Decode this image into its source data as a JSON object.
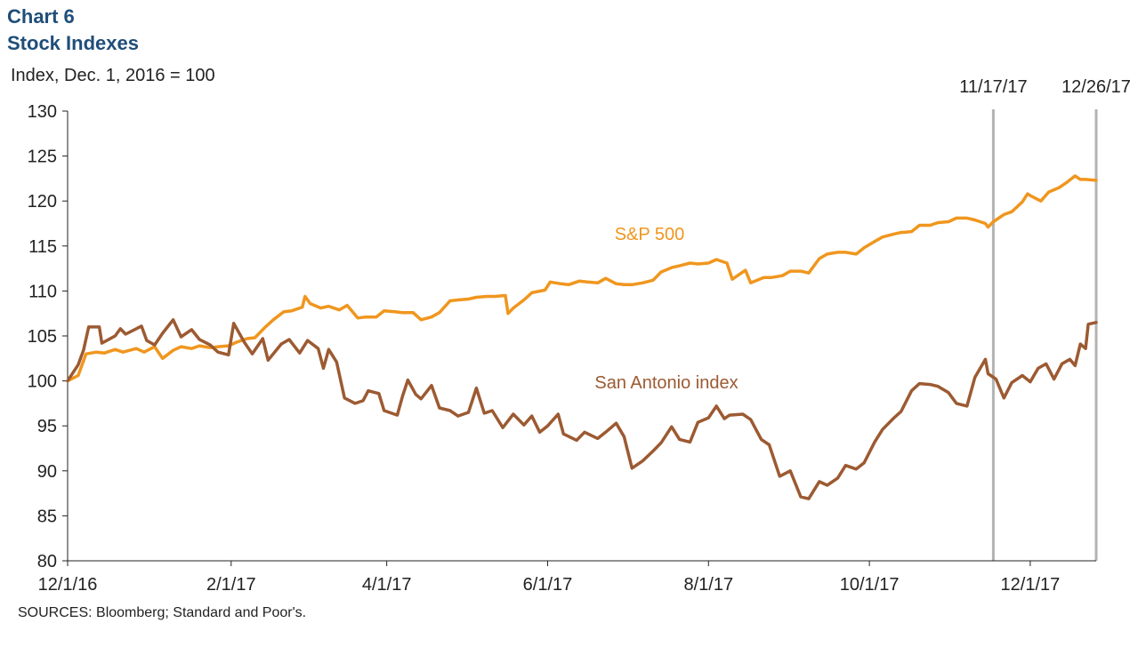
{
  "header": {
    "title": "Chart 6",
    "subtitle": "Stock Indexes",
    "ylabel": "Index, Dec. 1, 2016 = 100",
    "source": "SOURCES: Bloomberg; Standard and Poor's."
  },
  "chart_data": {
    "type": "line",
    "title": "Stock Indexes",
    "ylabel": "Index, Dec. 1, 2016 = 100",
    "xlabel": "",
    "ylim": [
      80,
      130
    ],
    "yticks": [
      80,
      85,
      90,
      95,
      100,
      105,
      110,
      115,
      120,
      125,
      130
    ],
    "xlim": [
      "2016-12-01",
      "2017-12-26"
    ],
    "x_tick_labels": [
      "12/1/16",
      "2/1/17",
      "4/1/17",
      "6/1/17",
      "8/1/17",
      "10/1/17",
      "12/1/17"
    ],
    "x_tick_dates": [
      "2016-12-01",
      "2017-02-01",
      "2017-04-01",
      "2017-06-01",
      "2017-08-01",
      "2017-10-01",
      "2017-12-01"
    ],
    "grid": false,
    "reference_lines": [
      {
        "label": "11/17/17",
        "date": "2017-11-17"
      },
      {
        "label": "12/26/17",
        "date": "2017-12-26"
      }
    ],
    "series": [
      {
        "name": "S&P 500",
        "color": "#f0961e",
        "points": [
          [
            "2016-12-01",
            100.0
          ],
          [
            "2016-12-05",
            100.6
          ],
          [
            "2016-12-08",
            103.0
          ],
          [
            "2016-12-12",
            103.2
          ],
          [
            "2016-12-15",
            103.1
          ],
          [
            "2016-12-19",
            103.5
          ],
          [
            "2016-12-22",
            103.2
          ],
          [
            "2016-12-27",
            103.6
          ],
          [
            "2016-12-30",
            103.2
          ],
          [
            "2017-01-03",
            103.8
          ],
          [
            "2017-01-06",
            102.5
          ],
          [
            "2017-01-10",
            103.4
          ],
          [
            "2017-01-13",
            103.8
          ],
          [
            "2017-01-17",
            103.6
          ],
          [
            "2017-01-20",
            103.9
          ],
          [
            "2017-01-24",
            103.7
          ],
          [
            "2017-01-27",
            103.8
          ],
          [
            "2017-01-31",
            103.9
          ],
          [
            "2017-02-03",
            104.3
          ],
          [
            "2017-02-07",
            104.7
          ],
          [
            "2017-02-10",
            104.8
          ],
          [
            "2017-02-14",
            106.0
          ],
          [
            "2017-02-17",
            106.8
          ],
          [
            "2017-02-21",
            107.7
          ],
          [
            "2017-02-24",
            107.8
          ],
          [
            "2017-02-28",
            108.2
          ],
          [
            "2017-03-01",
            109.4
          ],
          [
            "2017-03-03",
            108.6
          ],
          [
            "2017-03-07",
            108.1
          ],
          [
            "2017-03-10",
            108.3
          ],
          [
            "2017-03-14",
            107.9
          ],
          [
            "2017-03-17",
            108.4
          ],
          [
            "2017-03-21",
            107.0
          ],
          [
            "2017-03-24",
            107.1
          ],
          [
            "2017-03-28",
            107.1
          ],
          [
            "2017-03-31",
            107.8
          ],
          [
            "2017-04-04",
            107.7
          ],
          [
            "2017-04-07",
            107.6
          ],
          [
            "2017-04-11",
            107.6
          ],
          [
            "2017-04-14",
            106.8
          ],
          [
            "2017-04-18",
            107.1
          ],
          [
            "2017-04-21",
            107.6
          ],
          [
            "2017-04-25",
            108.9
          ],
          [
            "2017-04-28",
            109.0
          ],
          [
            "2017-05-02",
            109.1
          ],
          [
            "2017-05-05",
            109.3
          ],
          [
            "2017-05-09",
            109.4
          ],
          [
            "2017-05-12",
            109.4
          ],
          [
            "2017-05-16",
            109.5
          ],
          [
            "2017-05-17",
            107.5
          ],
          [
            "2017-05-19",
            108.1
          ],
          [
            "2017-05-23",
            109.0
          ],
          [
            "2017-05-26",
            109.8
          ],
          [
            "2017-05-31",
            110.1
          ],
          [
            "2017-06-02",
            111.0
          ],
          [
            "2017-06-06",
            110.8
          ],
          [
            "2017-06-09",
            110.7
          ],
          [
            "2017-06-13",
            111.1
          ],
          [
            "2017-06-16",
            111.0
          ],
          [
            "2017-06-20",
            110.9
          ],
          [
            "2017-06-23",
            111.4
          ],
          [
            "2017-06-27",
            110.8
          ],
          [
            "2017-06-30",
            110.7
          ],
          [
            "2017-07-03",
            110.7
          ],
          [
            "2017-07-07",
            110.9
          ],
          [
            "2017-07-11",
            111.2
          ],
          [
            "2017-07-14",
            112.1
          ],
          [
            "2017-07-18",
            112.6
          ],
          [
            "2017-07-21",
            112.8
          ],
          [
            "2017-07-25",
            113.1
          ],
          [
            "2017-07-28",
            113.0
          ],
          [
            "2017-08-01",
            113.1
          ],
          [
            "2017-08-04",
            113.5
          ],
          [
            "2017-08-08",
            113.1
          ],
          [
            "2017-08-10",
            111.3
          ],
          [
            "2017-08-15",
            112.3
          ],
          [
            "2017-08-17",
            110.9
          ],
          [
            "2017-08-22",
            111.5
          ],
          [
            "2017-08-25",
            111.5
          ],
          [
            "2017-08-29",
            111.7
          ],
          [
            "2017-09-01",
            112.2
          ],
          [
            "2017-09-05",
            112.2
          ],
          [
            "2017-09-08",
            112.0
          ],
          [
            "2017-09-12",
            113.6
          ],
          [
            "2017-09-15",
            114.1
          ],
          [
            "2017-09-19",
            114.3
          ],
          [
            "2017-09-22",
            114.3
          ],
          [
            "2017-09-26",
            114.1
          ],
          [
            "2017-09-29",
            114.8
          ],
          [
            "2017-10-03",
            115.5
          ],
          [
            "2017-10-06",
            116.0
          ],
          [
            "2017-10-10",
            116.3
          ],
          [
            "2017-10-13",
            116.5
          ],
          [
            "2017-10-17",
            116.6
          ],
          [
            "2017-10-20",
            117.3
          ],
          [
            "2017-10-24",
            117.3
          ],
          [
            "2017-10-27",
            117.6
          ],
          [
            "2017-10-31",
            117.7
          ],
          [
            "2017-11-03",
            118.1
          ],
          [
            "2017-11-07",
            118.1
          ],
          [
            "2017-11-10",
            117.9
          ],
          [
            "2017-11-14",
            117.5
          ],
          [
            "2017-11-15",
            117.1
          ],
          [
            "2017-11-17",
            117.7
          ],
          [
            "2017-11-21",
            118.5
          ],
          [
            "2017-11-24",
            118.8
          ],
          [
            "2017-11-28",
            119.9
          ],
          [
            "2017-11-30",
            120.8
          ],
          [
            "2017-12-01",
            120.6
          ],
          [
            "2017-12-05",
            120.0
          ],
          [
            "2017-12-08",
            121.0
          ],
          [
            "2017-12-12",
            121.5
          ],
          [
            "2017-12-15",
            122.1
          ],
          [
            "2017-12-18",
            122.8
          ],
          [
            "2017-12-20",
            122.4
          ],
          [
            "2017-12-22",
            122.4
          ],
          [
            "2017-12-26",
            122.3
          ]
        ]
      },
      {
        "name": "San Antonio index",
        "color": "#9c5a32",
        "points": [
          [
            "2016-12-01",
            100.0
          ],
          [
            "2016-12-05",
            101.8
          ],
          [
            "2016-12-07",
            103.4
          ],
          [
            "2016-12-09",
            106.0
          ],
          [
            "2016-12-13",
            106.0
          ],
          [
            "2016-12-14",
            104.2
          ],
          [
            "2016-12-19",
            105.0
          ],
          [
            "2016-12-21",
            105.8
          ],
          [
            "2016-12-23",
            105.2
          ],
          [
            "2016-12-29",
            106.1
          ],
          [
            "2016-12-31",
            104.5
          ],
          [
            "2017-01-03",
            104.0
          ],
          [
            "2017-01-06",
            105.3
          ],
          [
            "2017-01-10",
            106.8
          ],
          [
            "2017-01-13",
            104.9
          ],
          [
            "2017-01-17",
            105.7
          ],
          [
            "2017-01-20",
            104.6
          ],
          [
            "2017-01-24",
            104.0
          ],
          [
            "2017-01-27",
            103.2
          ],
          [
            "2017-01-31",
            102.9
          ],
          [
            "2017-02-02",
            106.4
          ],
          [
            "2017-02-06",
            104.3
          ],
          [
            "2017-02-09",
            103.0
          ],
          [
            "2017-02-13",
            104.7
          ],
          [
            "2017-02-15",
            102.3
          ],
          [
            "2017-02-20",
            104.1
          ],
          [
            "2017-02-23",
            104.6
          ],
          [
            "2017-02-27",
            103.1
          ],
          [
            "2017-03-02",
            104.5
          ],
          [
            "2017-03-06",
            103.6
          ],
          [
            "2017-03-08",
            101.4
          ],
          [
            "2017-03-10",
            103.5
          ],
          [
            "2017-03-13",
            102.1
          ],
          [
            "2017-03-16",
            98.1
          ],
          [
            "2017-03-20",
            97.5
          ],
          [
            "2017-03-23",
            97.8
          ],
          [
            "2017-03-25",
            98.9
          ],
          [
            "2017-03-29",
            98.6
          ],
          [
            "2017-03-31",
            96.7
          ],
          [
            "2017-04-05",
            96.2
          ],
          [
            "2017-04-07",
            98.3
          ],
          [
            "2017-04-09",
            100.1
          ],
          [
            "2017-04-12",
            98.5
          ],
          [
            "2017-04-14",
            98.0
          ],
          [
            "2017-04-18",
            99.5
          ],
          [
            "2017-04-21",
            97.0
          ],
          [
            "2017-04-25",
            96.7
          ],
          [
            "2017-04-28",
            96.1
          ],
          [
            "2017-05-02",
            96.5
          ],
          [
            "2017-05-05",
            99.2
          ],
          [
            "2017-05-08",
            96.4
          ],
          [
            "2017-05-11",
            96.7
          ],
          [
            "2017-05-15",
            94.8
          ],
          [
            "2017-05-19",
            96.3
          ],
          [
            "2017-05-23",
            95.1
          ],
          [
            "2017-05-26",
            96.1
          ],
          [
            "2017-05-29",
            94.3
          ],
          [
            "2017-06-01",
            95.0
          ],
          [
            "2017-06-05",
            96.3
          ],
          [
            "2017-06-07",
            94.1
          ],
          [
            "2017-06-12",
            93.4
          ],
          [
            "2017-06-15",
            94.3
          ],
          [
            "2017-06-20",
            93.6
          ],
          [
            "2017-06-23",
            94.3
          ],
          [
            "2017-06-27",
            95.3
          ],
          [
            "2017-06-30",
            93.8
          ],
          [
            "2017-07-03",
            90.3
          ],
          [
            "2017-07-07",
            91.1
          ],
          [
            "2017-07-11",
            92.2
          ],
          [
            "2017-07-14",
            93.1
          ],
          [
            "2017-07-18",
            94.9
          ],
          [
            "2017-07-21",
            93.5
          ],
          [
            "2017-07-25",
            93.2
          ],
          [
            "2017-07-28",
            95.4
          ],
          [
            "2017-08-01",
            95.9
          ],
          [
            "2017-08-04",
            97.2
          ],
          [
            "2017-08-07",
            95.8
          ],
          [
            "2017-08-09",
            96.2
          ],
          [
            "2017-08-14",
            96.3
          ],
          [
            "2017-08-17",
            95.7
          ],
          [
            "2017-08-21",
            93.5
          ],
          [
            "2017-08-24",
            92.9
          ],
          [
            "2017-08-28",
            89.4
          ],
          [
            "2017-09-01",
            90.0
          ],
          [
            "2017-09-05",
            87.1
          ],
          [
            "2017-09-08",
            86.9
          ],
          [
            "2017-09-12",
            88.8
          ],
          [
            "2017-09-15",
            88.4
          ],
          [
            "2017-09-19",
            89.2
          ],
          [
            "2017-09-22",
            90.6
          ],
          [
            "2017-09-26",
            90.2
          ],
          [
            "2017-09-29",
            90.9
          ],
          [
            "2017-10-03",
            93.2
          ],
          [
            "2017-10-06",
            94.6
          ],
          [
            "2017-10-10",
            95.8
          ],
          [
            "2017-10-13",
            96.6
          ],
          [
            "2017-10-17",
            98.9
          ],
          [
            "2017-10-20",
            99.7
          ],
          [
            "2017-10-24",
            99.6
          ],
          [
            "2017-10-27",
            99.4
          ],
          [
            "2017-10-31",
            98.7
          ],
          [
            "2017-11-03",
            97.5
          ],
          [
            "2017-11-07",
            97.2
          ],
          [
            "2017-11-10",
            100.4
          ],
          [
            "2017-11-14",
            102.4
          ],
          [
            "2017-11-15",
            100.8
          ],
          [
            "2017-11-18",
            100.2
          ],
          [
            "2017-11-21",
            98.1
          ],
          [
            "2017-11-24",
            99.8
          ],
          [
            "2017-11-28",
            100.6
          ],
          [
            "2017-12-01",
            99.9
          ],
          [
            "2017-12-04",
            101.4
          ],
          [
            "2017-12-07",
            101.9
          ],
          [
            "2017-12-10",
            100.2
          ],
          [
            "2017-12-13",
            101.9
          ],
          [
            "2017-12-16",
            102.4
          ],
          [
            "2017-12-18",
            101.7
          ],
          [
            "2017-12-20",
            104.1
          ],
          [
            "2017-12-22",
            103.6
          ],
          [
            "2017-12-23",
            106.3
          ],
          [
            "2017-12-26",
            106.5
          ]
        ]
      }
    ],
    "series_labels": [
      {
        "text": "S&P 500",
        "color": "#f0961e"
      },
      {
        "text": "San Antonio index",
        "color": "#9c5a32"
      }
    ]
  }
}
